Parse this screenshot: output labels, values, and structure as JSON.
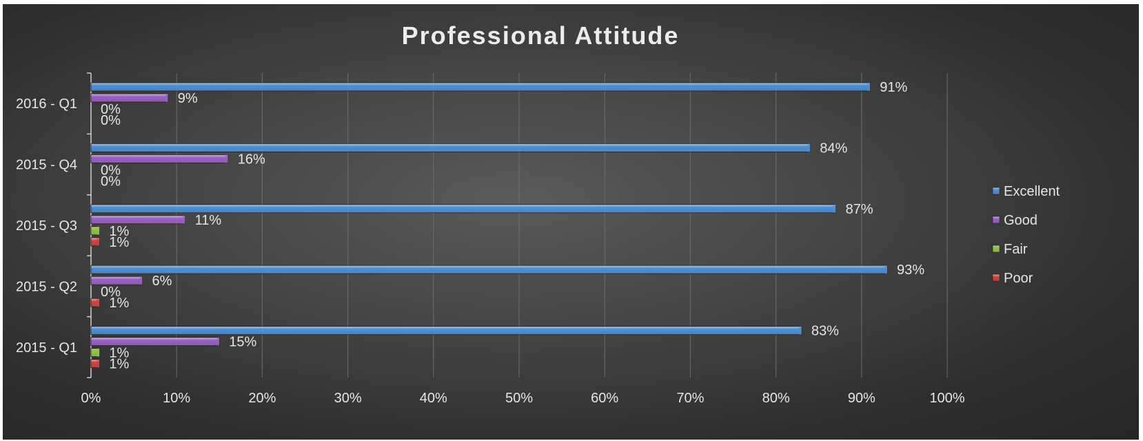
{
  "chart_data": {
    "type": "bar",
    "orientation": "horizontal",
    "title": "Professional Attitude",
    "categories": [
      "2016 - Q1",
      "2015 - Q4",
      "2015 - Q3",
      "2015 - Q2",
      "2015 - Q1"
    ],
    "series": [
      {
        "name": "Excellent",
        "color": "#4a8fd8",
        "values": [
          91,
          84,
          87,
          93,
          83
        ],
        "labels": [
          "91%",
          "84%",
          "87%",
          "93%",
          "83%"
        ]
      },
      {
        "name": "Good",
        "color": "#9a5fc8",
        "values": [
          9,
          16,
          11,
          6,
          15
        ],
        "labels": [
          "9%",
          "16%",
          "11%",
          "6%",
          "15%"
        ]
      },
      {
        "name": "Fair",
        "color": "#8fc63f",
        "values": [
          0,
          0,
          1,
          0,
          1
        ],
        "labels": [
          "0%",
          "0%",
          "1%",
          "0%",
          "1%"
        ]
      },
      {
        "name": "Poor",
        "color": "#d9403a",
        "values": [
          0,
          0,
          1,
          1,
          1
        ],
        "labels": [
          "0%",
          "0%",
          "1%",
          "1%",
          "1%"
        ]
      }
    ],
    "xlim": [
      0,
      100
    ],
    "xticks": [
      "0%",
      "10%",
      "20%",
      "30%",
      "40%",
      "50%",
      "60%",
      "70%",
      "80%",
      "90%",
      "100%"
    ],
    "grid": true,
    "legend": "right"
  }
}
